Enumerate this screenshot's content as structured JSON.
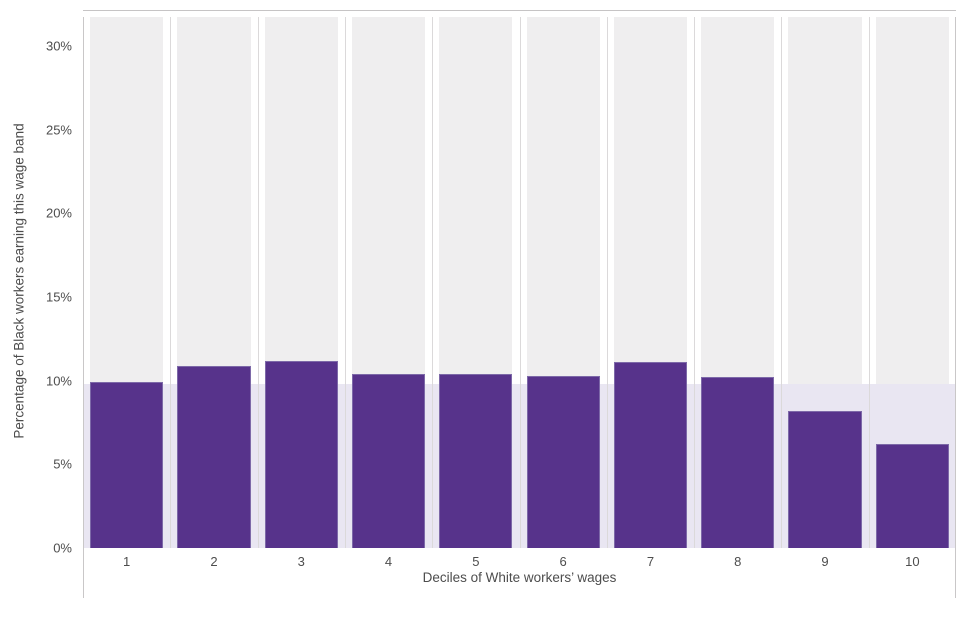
{
  "chart_data": {
    "type": "bar",
    "title": "",
    "categories": [
      "1",
      "2",
      "3",
      "4",
      "5",
      "6",
      "7",
      "8",
      "9",
      "10"
    ],
    "values": [
      9.9,
      10.9,
      11.2,
      10.4,
      10.4,
      10.3,
      11.1,
      10.2,
      8.2,
      6.2
    ],
    "xlabel": "Deciles of White workers’ wages",
    "ylabel": "Percentage of Black workers earning this wage band",
    "y_ticks": [
      {
        "label": "0%",
        "value": 0
      },
      {
        "label": "5%",
        "value": 5
      },
      {
        "label": "10%",
        "value": 10
      },
      {
        "label": "15%",
        "value": 15
      },
      {
        "label": "20%",
        "value": 20
      },
      {
        "label": "25%",
        "value": 25
      },
      {
        "label": "30%",
        "value": 30
      }
    ],
    "ylim": [
      0,
      32
    ],
    "grid": "vertical-separators-only",
    "legend_position": "none",
    "reference_band": {
      "from": 0,
      "to": 9.8
    },
    "colors": {
      "bar": "#57338b",
      "bar_edge": "#7d69a8",
      "column_background": "#efeeef",
      "reference_band": "#e9e6f2",
      "separator_line": "#dbd9da",
      "outer_line": "#c9c7c8",
      "top_line": "#c6c4c5",
      "text": "#4d4d4d",
      "page_background": "#ffffff"
    }
  }
}
